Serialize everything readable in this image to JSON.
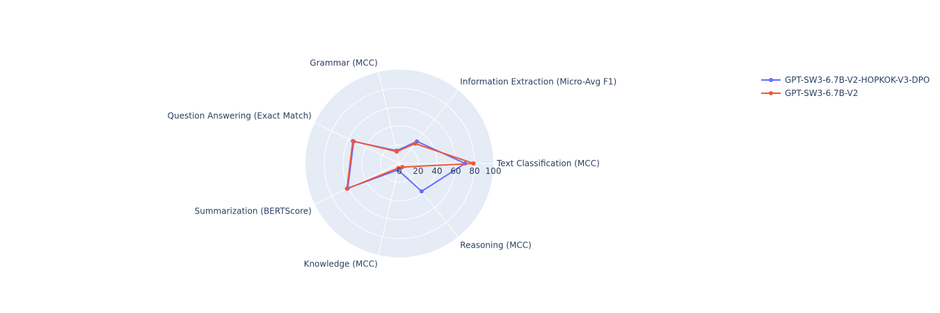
{
  "chart_data": {
    "type": "radar",
    "title": "",
    "axes": [
      "Text Classification (MCC)",
      "Information Extraction (Micro-Avg F1)",
      "Grammar (MCC)",
      "Question Answering (Exact Match)",
      "Summarization (BERTScore)",
      "Knowledge (MCC)",
      "Reasoning (MCC)"
    ],
    "radial_range": [
      0,
      100
    ],
    "radial_ticks": [
      "0",
      "20",
      "40",
      "60",
      "80",
      "100"
    ],
    "grid": true,
    "legend_position": "top-right",
    "series": [
      {
        "name": "GPT-SW3-6.7B-V2-HOPKOK-V3-DPO",
        "color": "#636efa",
        "values": [
          70,
          30,
          14,
          54,
          61,
          7,
          38
        ]
      },
      {
        "name": "GPT-SW3-6.7B-V2",
        "color": "#ef553b",
        "values": [
          79,
          27,
          13,
          55,
          62,
          5,
          5
        ]
      }
    ],
    "background_color": "#e5ecf6",
    "grid_color": "#ffffff"
  }
}
